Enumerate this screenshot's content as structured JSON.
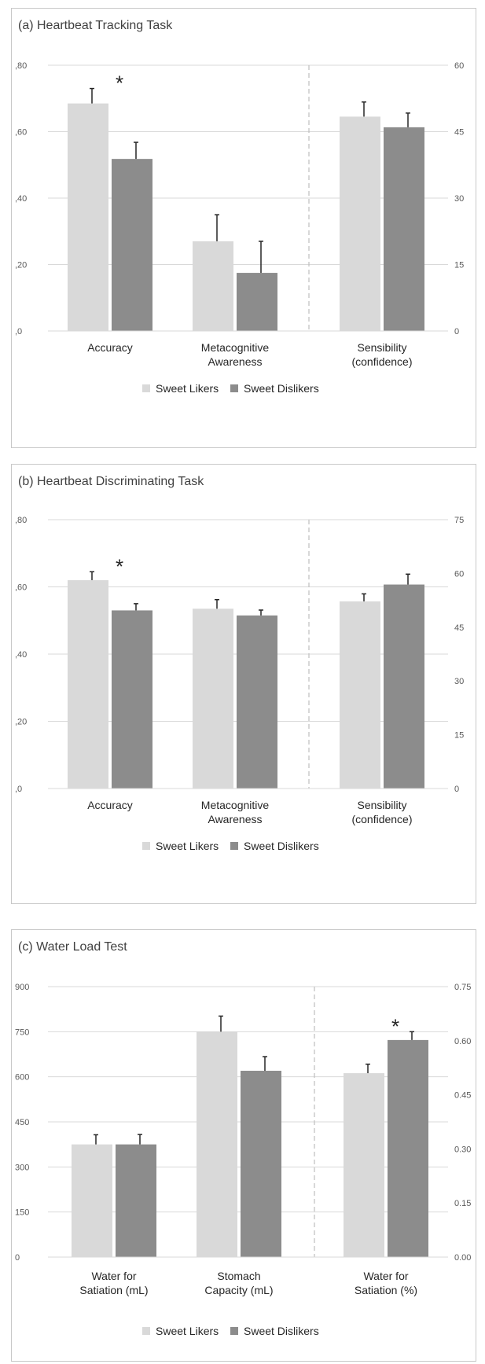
{
  "colors": {
    "likers": "#d9d9d9",
    "dislikers": "#8c8c8c",
    "grid": "#d9d9d9",
    "divider": "#bfbfbf",
    "error": "#262626"
  },
  "chart_data": [
    {
      "type": "bar",
      "title": "(a) Heartbeat Tracking Task",
      "categories": [
        [
          "Accuracy"
        ],
        [
          "Metacognitive",
          "Awareness"
        ],
        [
          "Sensibility",
          "(confidence)"
        ]
      ],
      "series": [
        {
          "name": "Sweet Likers",
          "values": [
            0.685,
            0.27,
            48.4
          ],
          "errors": [
            0.045,
            0.08,
            3.3
          ]
        },
        {
          "name": "Sweet Dislikers",
          "values": [
            0.518,
            0.175,
            46.0
          ],
          "errors": [
            0.05,
            0.095,
            3.2
          ]
        }
      ],
      "axis_assignment": [
        "left",
        "left",
        "right"
      ],
      "left_axis": {
        "ylim": [
          0,
          0.8
        ],
        "ticks": [
          0,
          0.2,
          0.4,
          0.6,
          0.8
        ],
        "tick_labels": [
          ",0",
          ",20",
          ",40",
          ",60",
          ",80"
        ]
      },
      "right_axis": {
        "ylim": [
          0,
          60
        ],
        "ticks": [
          0,
          15,
          30,
          45,
          60
        ],
        "tick_labels": [
          "0",
          "15",
          "30",
          "45",
          "60"
        ]
      },
      "significance": [
        {
          "category": 0,
          "label": "*"
        }
      ],
      "legend": "bottom",
      "grid": true
    },
    {
      "type": "bar",
      "title": "(b) Heartbeat Discriminating Task",
      "categories": [
        [
          "Accuracy"
        ],
        [
          "Metacognitive",
          "Awareness"
        ],
        [
          "Sensibility",
          "(confidence)"
        ]
      ],
      "series": [
        {
          "name": "Sweet Likers",
          "values": [
            0.62,
            0.535,
            52.2
          ],
          "errors": [
            0.025,
            0.027,
            2.1
          ]
        },
        {
          "name": "Sweet Dislikers",
          "values": [
            0.53,
            0.515,
            56.9
          ],
          "errors": [
            0.02,
            0.016,
            2.9
          ]
        }
      ],
      "axis_assignment": [
        "left",
        "left",
        "right"
      ],
      "left_axis": {
        "ylim": [
          0,
          0.8
        ],
        "ticks": [
          0,
          0.2,
          0.4,
          0.6,
          0.8
        ],
        "tick_labels": [
          ",0",
          ",20",
          ",40",
          ",60",
          ",80"
        ]
      },
      "right_axis": {
        "ylim": [
          0,
          75
        ],
        "ticks": [
          0,
          15,
          30,
          45,
          60,
          75
        ],
        "tick_labels": [
          "0",
          "15",
          "30",
          "45",
          "60",
          "75"
        ]
      },
      "significance": [
        {
          "category": 0,
          "label": "*"
        }
      ],
      "legend": "bottom",
      "grid": true
    },
    {
      "type": "bar",
      "title": "(c) Water Load Test",
      "categories": [
        [
          "Water for",
          "Satiation (mL)"
        ],
        [
          "Stomach",
          "Capacity (mL)"
        ],
        [
          "Water for",
          "Satiation (%)"
        ]
      ],
      "series": [
        {
          "name": "Sweet Likers",
          "values": [
            375,
            750,
            0.51
          ],
          "errors": [
            32,
            52,
            0.025
          ]
        },
        {
          "name": "Sweet Dislikers",
          "values": [
            375,
            620,
            0.602
          ],
          "errors": [
            33,
            47,
            0.023
          ]
        }
      ],
      "axis_assignment": [
        "left",
        "left",
        "right"
      ],
      "left_axis": {
        "ylim": [
          0,
          900
        ],
        "ticks": [
          0,
          150,
          300,
          450,
          600,
          750,
          900
        ],
        "tick_labels": [
          "0",
          "150",
          "300",
          "450",
          "600",
          "750",
          "900"
        ]
      },
      "right_axis": {
        "ylim": [
          0,
          0.75
        ],
        "ticks": [
          0,
          0.15,
          0.3,
          0.45,
          0.6,
          0.75
        ],
        "tick_labels": [
          "0.00",
          "0.15",
          "0.30",
          "0.45",
          "0.60",
          "0.75"
        ]
      },
      "significance": [
        {
          "category": 2,
          "label": "*"
        }
      ],
      "legend": "bottom",
      "grid": true
    }
  ]
}
